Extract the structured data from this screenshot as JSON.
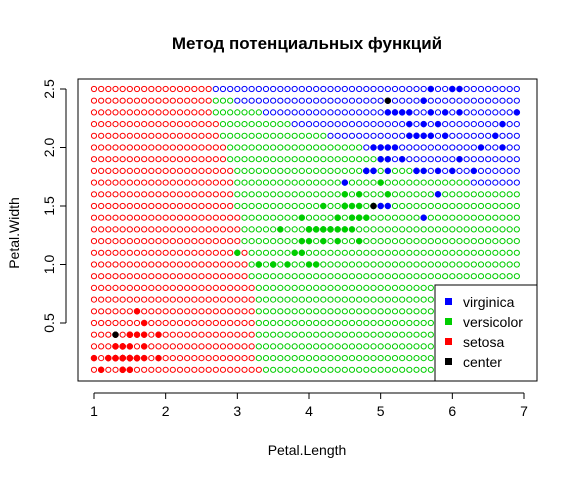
{
  "chart_data": {
    "type": "scatter",
    "title": "Метод потенциальных функций",
    "xlabel": "Petal.Length",
    "ylabel": "Petal.Width",
    "xlim": [
      0.8,
      7.2
    ],
    "ylim": [
      0.0,
      2.6
    ],
    "x_ticks": [
      "1",
      "2",
      "3",
      "4",
      "5",
      "6",
      "7"
    ],
    "y_ticks": [
      "0.5",
      "1.0",
      "1.5",
      "2.0",
      "2.5"
    ],
    "x_tick_values": [
      1,
      2,
      3,
      4,
      5,
      6,
      7
    ],
    "y_tick_values": [
      0.5,
      1.0,
      1.5,
      2.0,
      2.5
    ],
    "grid_open_points": {
      "x_start": 1.0,
      "x_end": 6.9,
      "x_step": 0.1,
      "y_start": 0.1,
      "y_end": 2.5,
      "y_step": 0.1,
      "description_rows": [
        {
          "y": 2.5,
          "setosa_max": 2.6,
          "versicolor_max": 2.6
        },
        {
          "y": 2.4,
          "setosa_max": 2.6,
          "versicolor_max": 2.9
        },
        {
          "y": 2.3,
          "setosa_max": 2.6,
          "versicolor_max": 3.3
        },
        {
          "y": 2.2,
          "setosa_max": 2.7,
          "versicolor_max": 3.7
        },
        {
          "y": 2.1,
          "setosa_max": 2.7,
          "versicolor_max": 4.2
        },
        {
          "y": 2.0,
          "setosa_max": 2.8,
          "versicolor_max": 4.7
        },
        {
          "y": 1.9,
          "setosa_max": 2.8,
          "versicolor_max": 5.1
        },
        {
          "y": 1.8,
          "setosa_max": 2.9,
          "versicolor_max": 5.6
        },
        {
          "y": 1.7,
          "setosa_max": 2.9,
          "versicolor_max": 6.2
        },
        {
          "y": 1.6,
          "setosa_max": 2.9,
          "versicolor_max": 6.9
        },
        {
          "y": 1.5,
          "setosa_max": 2.9,
          "versicolor_max": 6.9
        },
        {
          "y": 1.4,
          "setosa_max": 3.0,
          "versicolor_max": 6.9
        },
        {
          "y": 1.3,
          "setosa_max": 3.0,
          "versicolor_max": 6.9
        },
        {
          "y": 1.2,
          "setosa_max": 3.0,
          "versicolor_max": 6.9
        },
        {
          "y": 1.1,
          "setosa_max": 3.1,
          "versicolor_max": 6.9
        },
        {
          "y": 1.0,
          "setosa_max": 3.1,
          "versicolor_max": 6.9
        },
        {
          "y": 0.9,
          "setosa_max": 3.1,
          "versicolor_max": 6.9
        },
        {
          "y": 0.8,
          "setosa_max": 3.2,
          "versicolor_max": 6.9
        },
        {
          "y": 0.7,
          "setosa_max": 3.2,
          "versicolor_max": 6.9
        },
        {
          "y": 0.6,
          "setosa_max": 3.2,
          "versicolor_max": 6.9
        },
        {
          "y": 0.5,
          "setosa_max": 3.2,
          "versicolor_max": 6.9
        },
        {
          "y": 0.4,
          "setosa_max": 3.2,
          "versicolor_max": 6.9
        },
        {
          "y": 0.3,
          "setosa_max": 3.2,
          "versicolor_max": 6.9
        },
        {
          "y": 0.2,
          "setosa_max": 3.2,
          "versicolor_max": 6.9
        },
        {
          "y": 0.1,
          "setosa_max": 3.3,
          "versicolor_max": 6.9
        }
      ]
    },
    "series": [
      {
        "name": "setosa",
        "color": "#ff0000",
        "points": [
          [
            1.4,
            0.2
          ],
          [
            1.4,
            0.2
          ],
          [
            1.3,
            0.2
          ],
          [
            1.5,
            0.2
          ],
          [
            1.4,
            0.2
          ],
          [
            1.7,
            0.4
          ],
          [
            1.4,
            0.3
          ],
          [
            1.5,
            0.2
          ],
          [
            1.4,
            0.2
          ],
          [
            1.5,
            0.1
          ],
          [
            1.5,
            0.2
          ],
          [
            1.6,
            0.2
          ],
          [
            1.4,
            0.1
          ],
          [
            1.1,
            0.1
          ],
          [
            1.2,
            0.2
          ],
          [
            1.5,
            0.4
          ],
          [
            1.3,
            0.4
          ],
          [
            1.4,
            0.3
          ],
          [
            1.7,
            0.3
          ],
          [
            1.5,
            0.3
          ],
          [
            1.7,
            0.2
          ],
          [
            1.5,
            0.4
          ],
          [
            1.0,
            0.2
          ],
          [
            1.7,
            0.5
          ],
          [
            1.9,
            0.2
          ],
          [
            1.6,
            0.2
          ],
          [
            1.6,
            0.4
          ],
          [
            1.5,
            0.2
          ],
          [
            1.4,
            0.2
          ],
          [
            1.6,
            0.2
          ],
          [
            1.6,
            0.2
          ],
          [
            1.5,
            0.4
          ],
          [
            1.5,
            0.1
          ],
          [
            1.4,
            0.2
          ],
          [
            1.5,
            0.2
          ],
          [
            1.2,
            0.2
          ],
          [
            1.3,
            0.2
          ],
          [
            1.4,
            0.1
          ],
          [
            1.3,
            0.2
          ],
          [
            1.5,
            0.2
          ],
          [
            1.3,
            0.3
          ],
          [
            1.3,
            0.3
          ],
          [
            1.3,
            0.2
          ],
          [
            1.6,
            0.6
          ],
          [
            1.9,
            0.4
          ],
          [
            1.4,
            0.3
          ],
          [
            1.6,
            0.2
          ],
          [
            1.4,
            0.2
          ],
          [
            1.5,
            0.2
          ],
          [
            1.4,
            0.2
          ]
        ]
      },
      {
        "name": "versicolor",
        "color": "#00cd00",
        "points": [
          [
            4.7,
            1.4
          ],
          [
            4.5,
            1.5
          ],
          [
            4.9,
            1.5
          ],
          [
            4.0,
            1.3
          ],
          [
            4.6,
            1.5
          ],
          [
            4.5,
            1.3
          ],
          [
            4.7,
            1.6
          ],
          [
            3.3,
            1.0
          ],
          [
            4.6,
            1.3
          ],
          [
            3.9,
            1.4
          ],
          [
            3.5,
            1.0
          ],
          [
            4.2,
            1.5
          ],
          [
            4.0,
            1.0
          ],
          [
            4.7,
            1.4
          ],
          [
            3.6,
            1.3
          ],
          [
            4.4,
            1.4
          ],
          [
            4.5,
            1.5
          ],
          [
            4.1,
            1.0
          ],
          [
            4.5,
            1.5
          ],
          [
            3.9,
            1.1
          ],
          [
            4.8,
            1.8
          ],
          [
            4.0,
            1.3
          ],
          [
            4.9,
            1.5
          ],
          [
            4.7,
            1.2
          ],
          [
            4.3,
            1.3
          ],
          [
            4.4,
            1.4
          ],
          [
            4.8,
            1.4
          ],
          [
            5.0,
            1.7
          ],
          [
            4.5,
            1.5
          ],
          [
            3.5,
            1.0
          ],
          [
            3.8,
            1.1
          ],
          [
            3.7,
            1.0
          ],
          [
            3.9,
            1.2
          ],
          [
            5.1,
            1.6
          ],
          [
            4.5,
            1.5
          ],
          [
            4.5,
            1.6
          ],
          [
            4.7,
            1.5
          ],
          [
            4.4,
            1.3
          ],
          [
            4.1,
            1.3
          ],
          [
            4.0,
            1.3
          ],
          [
            4.4,
            1.2
          ],
          [
            4.6,
            1.4
          ],
          [
            4.0,
            1.2
          ],
          [
            3.3,
            1.0
          ],
          [
            4.2,
            1.3
          ],
          [
            4.2,
            1.2
          ],
          [
            4.2,
            1.3
          ],
          [
            4.3,
            1.3
          ],
          [
            3.0,
            1.1
          ],
          [
            4.1,
            1.3
          ]
        ]
      },
      {
        "name": "virginica",
        "color": "#0000ff",
        "points": [
          [
            6.0,
            2.5
          ],
          [
            5.1,
            1.9
          ],
          [
            5.9,
            2.1
          ],
          [
            5.6,
            1.8
          ],
          [
            5.8,
            2.2
          ],
          [
            6.6,
            2.1
          ],
          [
            4.5,
            1.7
          ],
          [
            6.3,
            1.8
          ],
          [
            5.8,
            1.8
          ],
          [
            6.1,
            2.5
          ],
          [
            5.1,
            2.0
          ],
          [
            5.3,
            1.9
          ],
          [
            5.5,
            2.1
          ],
          [
            5.0,
            2.0
          ],
          [
            5.1,
            2.4
          ],
          [
            5.3,
            2.3
          ],
          [
            5.5,
            1.8
          ],
          [
            6.7,
            2.2
          ],
          [
            6.9,
            2.3
          ],
          [
            5.0,
            1.5
          ],
          [
            5.7,
            2.3
          ],
          [
            4.9,
            2.0
          ],
          [
            6.7,
            2.0
          ],
          [
            4.9,
            1.8
          ],
          [
            5.7,
            2.1
          ],
          [
            6.0,
            1.8
          ],
          [
            4.8,
            1.8
          ],
          [
            4.9,
            1.8
          ],
          [
            5.6,
            2.1
          ],
          [
            5.8,
            1.6
          ],
          [
            6.1,
            1.9
          ],
          [
            6.4,
            2.0
          ],
          [
            5.6,
            2.2
          ],
          [
            5.1,
            1.5
          ],
          [
            5.6,
            1.4
          ],
          [
            6.1,
            2.3
          ],
          [
            5.6,
            2.4
          ],
          [
            5.5,
            1.8
          ],
          [
            4.8,
            1.8
          ],
          [
            5.4,
            2.1
          ],
          [
            5.6,
            2.4
          ],
          [
            5.1,
            2.3
          ],
          [
            5.9,
            2.3
          ],
          [
            5.7,
            2.5
          ],
          [
            5.2,
            2.3
          ],
          [
            5.0,
            1.9
          ],
          [
            5.2,
            2.0
          ],
          [
            5.4,
            2.3
          ],
          [
            5.1,
            1.8
          ],
          [
            5.4,
            2.2
          ]
        ]
      },
      {
        "name": "center",
        "color": "#000000",
        "points": [
          [
            1.3,
            0.4
          ],
          [
            5.1,
            2.4
          ],
          [
            4.9,
            1.5
          ]
        ]
      }
    ],
    "legend": {
      "placement": "bottom-right",
      "entries": [
        {
          "label": "virginica",
          "color": "#0000ff"
        },
        {
          "label": "versicolor",
          "color": "#00cd00"
        },
        {
          "label": "setosa",
          "color": "#ff0000"
        },
        {
          "label": "center",
          "color": "#000000"
        }
      ]
    },
    "grid": false
  }
}
